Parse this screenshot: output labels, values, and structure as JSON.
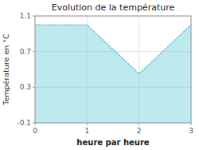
{
  "chart_data": {
    "type": "area",
    "title": "Evolution de la température",
    "xlabel": "heure par heure",
    "ylabel": "Température en °C",
    "x": [
      0,
      1,
      2,
      3
    ],
    "values": [
      1.0,
      1.0,
      0.45,
      1.0
    ],
    "xlim": [
      0,
      3
    ],
    "ylim": [
      -0.1,
      1.1
    ],
    "xticks": [
      0,
      1,
      2,
      3
    ],
    "yticks": [
      -0.1,
      0.3,
      0.7,
      1.1
    ],
    "grid": true,
    "color": "#5bc8d8",
    "line_style": "dotted"
  }
}
